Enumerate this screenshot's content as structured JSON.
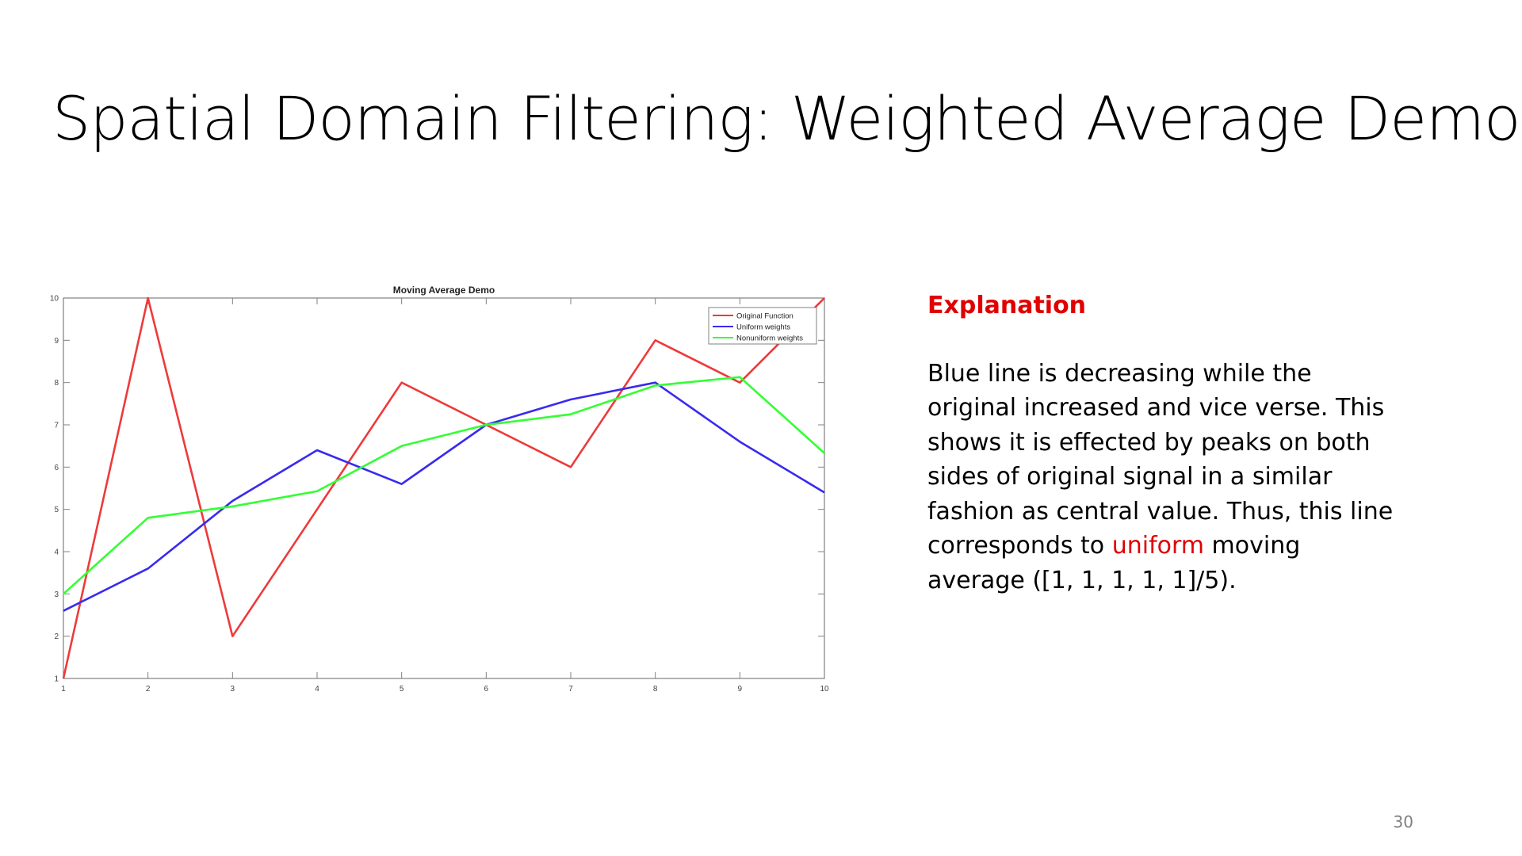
{
  "slide": {
    "title": "Spatial Domain Filtering: Weighted Average Demo",
    "page_number": "30"
  },
  "explanation": {
    "heading": "Explanation",
    "body_part1": "Blue line is decreasing while the original increased and vice verse. This shows it is effected by peaks on both sides of original signal in a similar fashion as central value. Thus, this line corresponds to ",
    "highlight": "uniform",
    "body_part2": " moving average ([1, 1, 1, 1, 1]/5).",
    "heading_color": "#e00000",
    "highlight_color": "#e00000"
  },
  "chart_data": {
    "type": "line",
    "title": "Moving Average Demo",
    "xlabel": "",
    "ylabel": "",
    "xlim": [
      1,
      10
    ],
    "ylim": [
      1,
      10
    ],
    "x": [
      1,
      2,
      3,
      4,
      5,
      6,
      7,
      8,
      9,
      10
    ],
    "x_ticks": [
      "1",
      "2",
      "3",
      "4",
      "5",
      "6",
      "7",
      "8",
      "9",
      "10"
    ],
    "y_ticks": [
      "1",
      "2",
      "3",
      "4",
      "5",
      "6",
      "7",
      "8",
      "9",
      "10"
    ],
    "grid": false,
    "legend_position": "top-right",
    "series": [
      {
        "name": "Original Function",
        "color": "#ee3a3a",
        "values": [
          1,
          10,
          2,
          5,
          8,
          7,
          6,
          9,
          8,
          10
        ]
      },
      {
        "name": "Uniform weights",
        "color": "#3a2af0",
        "values": [
          2.6,
          3.6,
          5.2,
          6.4,
          5.6,
          7.0,
          7.6,
          8.0,
          6.6,
          5.4
        ]
      },
      {
        "name": "Nonuniform weights",
        "color": "#33ff33",
        "values": [
          3.0,
          4.8,
          5.07,
          5.43,
          6.5,
          7.0,
          7.25,
          7.93,
          8.13,
          6.33
        ]
      }
    ]
  }
}
